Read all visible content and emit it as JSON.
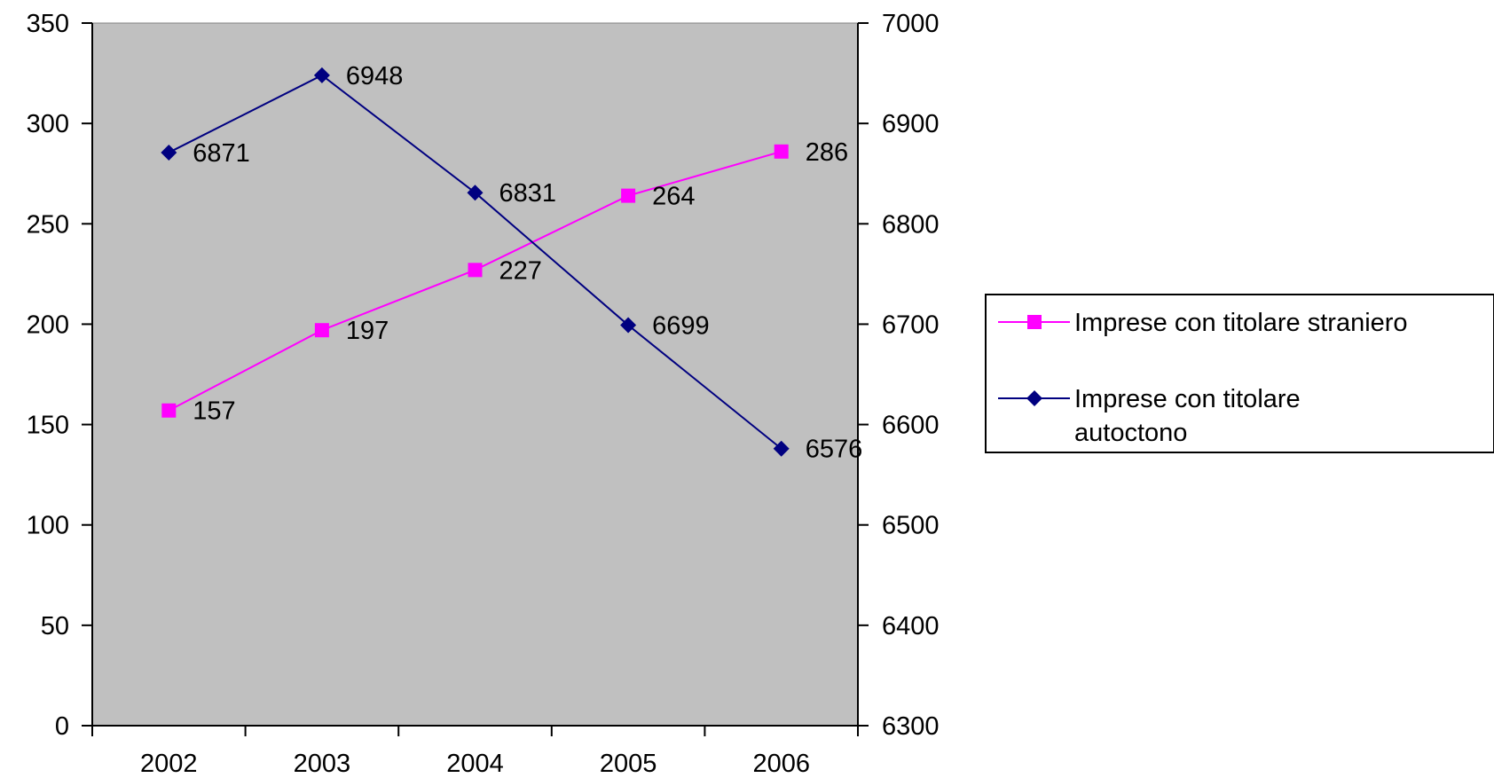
{
  "chart_data": {
    "type": "line",
    "title": "",
    "categories": [
      "2002",
      "2003",
      "2004",
      "2005",
      "2006"
    ],
    "y_left": {
      "min": 0,
      "max": 350,
      "step": 50
    },
    "y_right": {
      "min": 6300,
      "max": 7000,
      "step": 100
    },
    "grid": false,
    "plot_background": "#C0C0C0",
    "legend_position": "right",
    "series": [
      {
        "name": "Imprese con titolare straniero",
        "axis": "left",
        "color": "#FF00FF",
        "marker": "square",
        "values": [
          157,
          197,
          227,
          264,
          286
        ]
      },
      {
        "name": "Imprese con titolare autoctono",
        "axis": "right",
        "color": "#000080",
        "marker": "diamond",
        "values": [
          6871,
          6948,
          6831,
          6699,
          6576
        ]
      }
    ]
  }
}
